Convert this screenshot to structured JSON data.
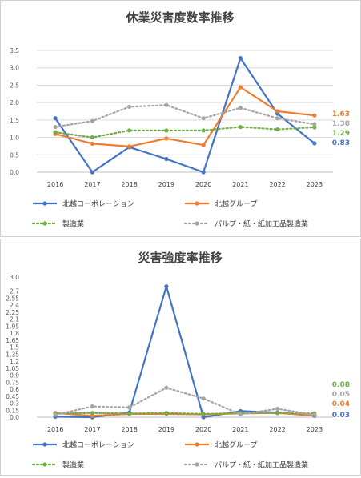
{
  "chart_data": [
    {
      "type": "line",
      "title": "休業災害度数率推移",
      "xlabel": "",
      "ylabel": "",
      "x": [
        "2016",
        "2017",
        "2018",
        "2019",
        "2020",
        "2021",
        "2022",
        "2023"
      ],
      "ylim": [
        0,
        3.5
      ],
      "yticks": [
        "0.0",
        "0.5",
        "1.0",
        "1.5",
        "2.0",
        "2.5",
        "3.0",
        "3.5"
      ],
      "grid": "horizontal",
      "legend_position": "bottom",
      "series": [
        {
          "name": "北越コーポレーション",
          "color": "#4472c4",
          "style": "solid",
          "values": [
            1.55,
            0.0,
            0.72,
            0.38,
            0.0,
            3.28,
            1.68,
            0.83
          ],
          "end_label": "0.83"
        },
        {
          "name": "北越グループ",
          "color": "#ed7d31",
          "style": "solid",
          "values": [
            1.1,
            0.82,
            0.74,
            0.97,
            0.78,
            2.44,
            1.75,
            1.63
          ],
          "end_label": "1.63"
        },
        {
          "name": "製造業",
          "color": "#70ad47",
          "style": "dotted",
          "values": [
            1.15,
            1.0,
            1.2,
            1.2,
            1.2,
            1.3,
            1.23,
            1.29
          ],
          "end_label": "1.29"
        },
        {
          "name": "パルプ・紙・紙加工品製造業",
          "color": "#a5a5a5",
          "style": "dotted",
          "values": [
            1.3,
            1.47,
            1.88,
            1.93,
            1.55,
            1.85,
            1.55,
            1.38
          ],
          "end_label": "1.38"
        }
      ]
    },
    {
      "type": "line",
      "title": "災害強度率推移",
      "xlabel": "",
      "ylabel": "",
      "x": [
        "2016",
        "2017",
        "2018",
        "2019",
        "2020",
        "2021",
        "2022",
        "2023"
      ],
      "ylim": [
        0,
        3.0
      ],
      "yticks": [
        "0.0",
        "0.15",
        "0.3",
        "0.45",
        "0.6",
        "0.75",
        "0.9",
        "1.05",
        "1.2",
        "1.35",
        "1.5",
        "1.65",
        "1.8",
        "1.95",
        "2.1",
        "2.25",
        "2.4",
        "2.55",
        "2.7",
        "3.0"
      ],
      "grid": "none",
      "legend_position": "bottom",
      "series": [
        {
          "name": "北越コーポレーション",
          "color": "#4472c4",
          "style": "solid",
          "values": [
            0.01,
            0.0,
            0.1,
            2.8,
            0.0,
            0.13,
            0.1,
            0.03
          ],
          "end_label": "0.03"
        },
        {
          "name": "北越グループ",
          "color": "#ed7d31",
          "style": "solid",
          "values": [
            0.09,
            0.03,
            0.07,
            0.07,
            0.06,
            0.08,
            0.09,
            0.04
          ],
          "end_label": "0.04"
        },
        {
          "name": "製造業",
          "color": "#70ad47",
          "style": "dotted",
          "values": [
            0.08,
            0.09,
            0.08,
            0.09,
            0.07,
            0.09,
            0.09,
            0.08
          ],
          "end_label": "0.08"
        },
        {
          "name": "パルプ・紙・紙加工品製造業",
          "color": "#a5a5a5",
          "style": "dotted",
          "values": [
            0.05,
            0.23,
            0.21,
            0.63,
            0.4,
            0.06,
            0.18,
            0.05
          ],
          "end_label": "0.05"
        }
      ]
    }
  ]
}
